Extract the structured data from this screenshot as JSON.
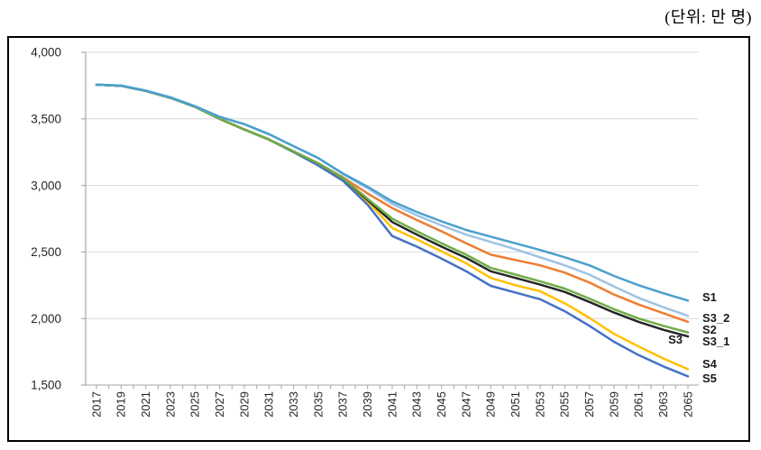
{
  "unit_label": "(단위: 만 명)",
  "chart_data": {
    "type": "line",
    "title": "",
    "unit": "만 명",
    "x": [
      2017,
      2019,
      2021,
      2023,
      2025,
      2027,
      2029,
      2031,
      2033,
      2035,
      2037,
      2039,
      2041,
      2043,
      2045,
      2047,
      2049,
      2051,
      2053,
      2055,
      2057,
      2059,
      2061,
      2063,
      2065
    ],
    "x_tick_labels": [
      "2017",
      "2019",
      "2021",
      "2023",
      "2025",
      "2027",
      "2029",
      "2031",
      "2033",
      "2035",
      "2037",
      "2039",
      "2041",
      "2043",
      "2045",
      "2047",
      "2049",
      "2051",
      "2053",
      "2055",
      "2057",
      "2059",
      "2061",
      "2063",
      "2065"
    ],
    "y_tick_labels": [
      "4,000",
      "3,500",
      "3,000",
      "2,500",
      "2,000",
      "1,500"
    ],
    "y_ticks": [
      4000,
      3500,
      3000,
      2500,
      2000,
      1500
    ],
    "xlim": [
      2017,
      2065
    ],
    "ylim": [
      1500,
      4000
    ],
    "grid": true,
    "legend_position": "line-end-labels-right",
    "series": [
      {
        "name": "S1",
        "color": "#4BA0CE",
        "values": [
          3757,
          3750,
          3712,
          3662,
          3595,
          3515,
          3460,
          3385,
          3295,
          3205,
          3090,
          2990,
          2880,
          2800,
          2730,
          2665,
          2615,
          2565,
          2515,
          2460,
          2400,
          2320,
          2250,
          2190,
          2135
        ]
      },
      {
        "name": "S2",
        "color": "#ED7D31",
        "values": [
          3757,
          3748,
          3710,
          3658,
          3590,
          3500,
          3420,
          3345,
          3255,
          3165,
          3060,
          2940,
          2830,
          2740,
          2655,
          2565,
          2480,
          2440,
          2400,
          2345,
          2270,
          2180,
          2105,
          2040,
          1975
        ]
      },
      {
        "name": "S3",
        "color": "#262626",
        "values": [
          3757,
          3748,
          3710,
          3658,
          3590,
          3500,
          3420,
          3345,
          3255,
          3165,
          3055,
          2890,
          2725,
          2630,
          2540,
          2455,
          2355,
          2305,
          2255,
          2200,
          2125,
          2045,
          1975,
          1915,
          1865
        ]
      },
      {
        "name": "S3_1",
        "color": "#70AD47",
        "values": [
          3757,
          3748,
          3710,
          3658,
          3590,
          3500,
          3420,
          3345,
          3255,
          3165,
          3055,
          2900,
          2750,
          2655,
          2565,
          2480,
          2380,
          2330,
          2280,
          2225,
          2150,
          2070,
          2000,
          1945,
          1895
        ]
      },
      {
        "name": "S3_2",
        "color": "#9DC3E6",
        "values": [
          3757,
          3750,
          3712,
          3662,
          3595,
          3515,
          3460,
          3385,
          3295,
          3205,
          3085,
          2980,
          2860,
          2775,
          2700,
          2630,
          2575,
          2520,
          2460,
          2400,
          2330,
          2240,
          2155,
          2085,
          2020
        ]
      },
      {
        "name": "S4",
        "color": "#FFC000",
        "values": [
          3757,
          3748,
          3710,
          3658,
          3590,
          3500,
          3420,
          3345,
          3255,
          3160,
          3050,
          2880,
          2680,
          2595,
          2505,
          2415,
          2305,
          2250,
          2205,
          2115,
          2005,
          1885,
          1790,
          1700,
          1620
        ]
      },
      {
        "name": "S5",
        "color": "#4472C4",
        "values": [
          3757,
          3748,
          3710,
          3658,
          3590,
          3500,
          3420,
          3345,
          3250,
          3150,
          3035,
          2855,
          2620,
          2540,
          2450,
          2355,
          2245,
          2195,
          2145,
          2055,
          1945,
          1825,
          1725,
          1640,
          1565
        ]
      }
    ]
  },
  "colors": {
    "grid": "#D9D9D9",
    "axis": "#A6A6A6",
    "tick_text": "#262626",
    "series_label_text": "#1A1A1A",
    "frame_border": "#000000",
    "background": "#FFFFFF"
  }
}
